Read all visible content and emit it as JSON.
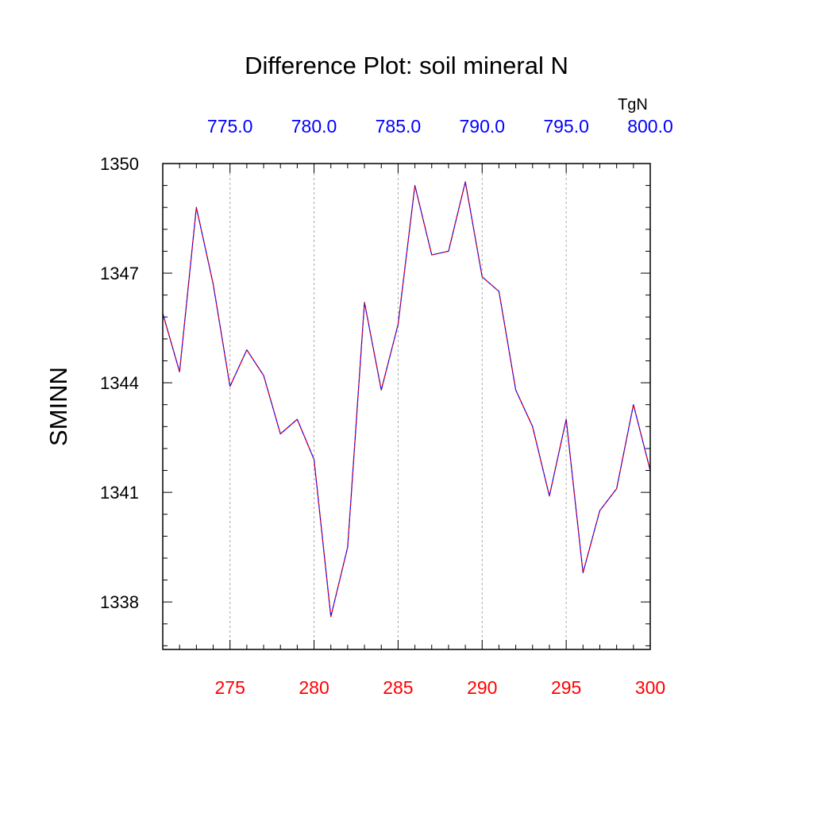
{
  "chart_data": {
    "type": "line",
    "title": "Difference Plot: soil mineral N",
    "ylabel": "SMINN",
    "xlim": [
      271,
      300
    ],
    "ylim": [
      1336.7,
      1350.0
    ],
    "x_ticks": [
      "275",
      "280",
      "285",
      "290",
      "295",
      "300"
    ],
    "x_tick_values": [
      275,
      280,
      285,
      290,
      295,
      300
    ],
    "x_tick_color": "#ff0000",
    "top_axis": {
      "unit": "TgN",
      "ticks": [
        "775.0",
        "780.0",
        "785.0",
        "790.0",
        "795.0",
        "800.0"
      ],
      "color": "#0000ff"
    },
    "y_ticks": [
      "1338",
      "1341",
      "1344",
      "1347",
      "1350"
    ],
    "y_tick_values": [
      1338,
      1341,
      1344,
      1347,
      1350
    ],
    "grid": "vertical dashed at major x ticks",
    "series": [
      {
        "color": "#0000ff",
        "dash_color": "#ff0000",
        "x": [
          271,
          272,
          273,
          274,
          275,
          276,
          277,
          278,
          279,
          280,
          281,
          282,
          283,
          284,
          285,
          286,
          287,
          288,
          289,
          290,
          291,
          292,
          293,
          294,
          295,
          296,
          297,
          298,
          299,
          300
        ],
        "y": [
          1345.9,
          1344.3,
          1348.8,
          1346.7,
          1343.9,
          1344.9,
          1344.2,
          1342.6,
          1343.0,
          1341.9,
          1337.6,
          1339.5,
          1346.2,
          1343.8,
          1345.6,
          1349.4,
          1347.5,
          1347.6,
          1349.5,
          1346.9,
          1346.5,
          1343.8,
          1342.8,
          1340.9,
          1343.0,
          1338.8,
          1340.5,
          1341.1,
          1343.4,
          1341.6
        ]
      }
    ]
  }
}
